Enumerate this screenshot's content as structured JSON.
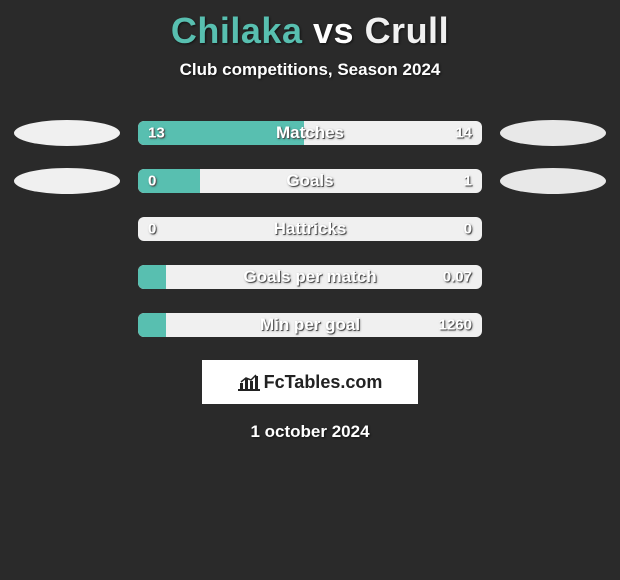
{
  "colors": {
    "background": "#2a2a2a",
    "player1": "#58bfb0",
    "player2": "#f0f0f0",
    "ellipse1": "#f0f0f0",
    "ellipse2": "#e8e8e8",
    "text": "#ffffff"
  },
  "header": {
    "player1": "Chilaka",
    "vs": "vs",
    "player2": "Crull",
    "subtitle": "Club competitions, Season 2024"
  },
  "stats": [
    {
      "label": "Matches",
      "left_val": "13",
      "right_val": "14",
      "left_num": 13,
      "right_num": 14,
      "fill_pct": 48.15,
      "show_ellipses": true,
      "ellipse_left_offset": "0px",
      "ellipse_right_offset": "0px"
    },
    {
      "label": "Goals",
      "left_val": "0",
      "right_val": "1",
      "left_num": 0,
      "right_num": 1,
      "fill_pct": 18,
      "show_ellipses": true,
      "ellipse_left_offset": "12px",
      "ellipse_right_offset": "12px"
    },
    {
      "label": "Hattricks",
      "left_val": "0",
      "right_val": "0",
      "left_num": 0,
      "right_num": 0,
      "fill_pct": 0,
      "show_ellipses": false
    },
    {
      "label": "Goals per match",
      "left_val": "",
      "right_val": "0.07",
      "left_num": 0,
      "right_num": 0.07,
      "fill_pct": 8,
      "show_ellipses": false
    },
    {
      "label": "Min per goal",
      "left_val": "",
      "right_val": "1260",
      "left_num": 0,
      "right_num": 1260,
      "fill_pct": 8,
      "show_ellipses": false
    }
  ],
  "logo": {
    "text": "FcTables.com"
  },
  "footer": {
    "date": "1 october 2024"
  }
}
